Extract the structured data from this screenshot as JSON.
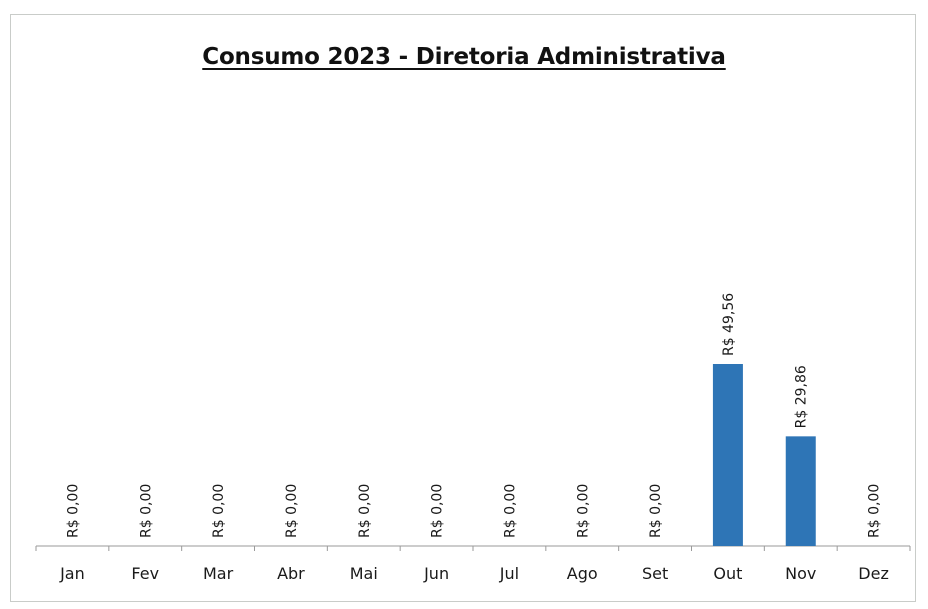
{
  "chart_data": {
    "type": "bar",
    "title": "Consumo 2023 - Diretoria Administrativa",
    "categories": [
      "Jan",
      "Fev",
      "Mar",
      "Abr",
      "Mai",
      "Jun",
      "Jul",
      "Ago",
      "Set",
      "Out",
      "Nov",
      "Dez"
    ],
    "values": [
      0,
      0,
      0,
      0,
      0,
      0,
      0,
      0,
      0,
      49.56,
      29.86,
      0
    ],
    "data_labels": [
      "R$ 0,00",
      "R$ 0,00",
      "R$ 0,00",
      "R$ 0,00",
      "R$ 0,00",
      "R$ 0,00",
      "R$ 0,00",
      "R$ 0,00",
      "R$ 0,00",
      "R$ 49,56",
      "R$ 29,86",
      "R$ 0,00"
    ],
    "xlabel": "",
    "ylabel": "",
    "grid": false,
    "legend": "none",
    "bar_color": "#2e75b6"
  }
}
